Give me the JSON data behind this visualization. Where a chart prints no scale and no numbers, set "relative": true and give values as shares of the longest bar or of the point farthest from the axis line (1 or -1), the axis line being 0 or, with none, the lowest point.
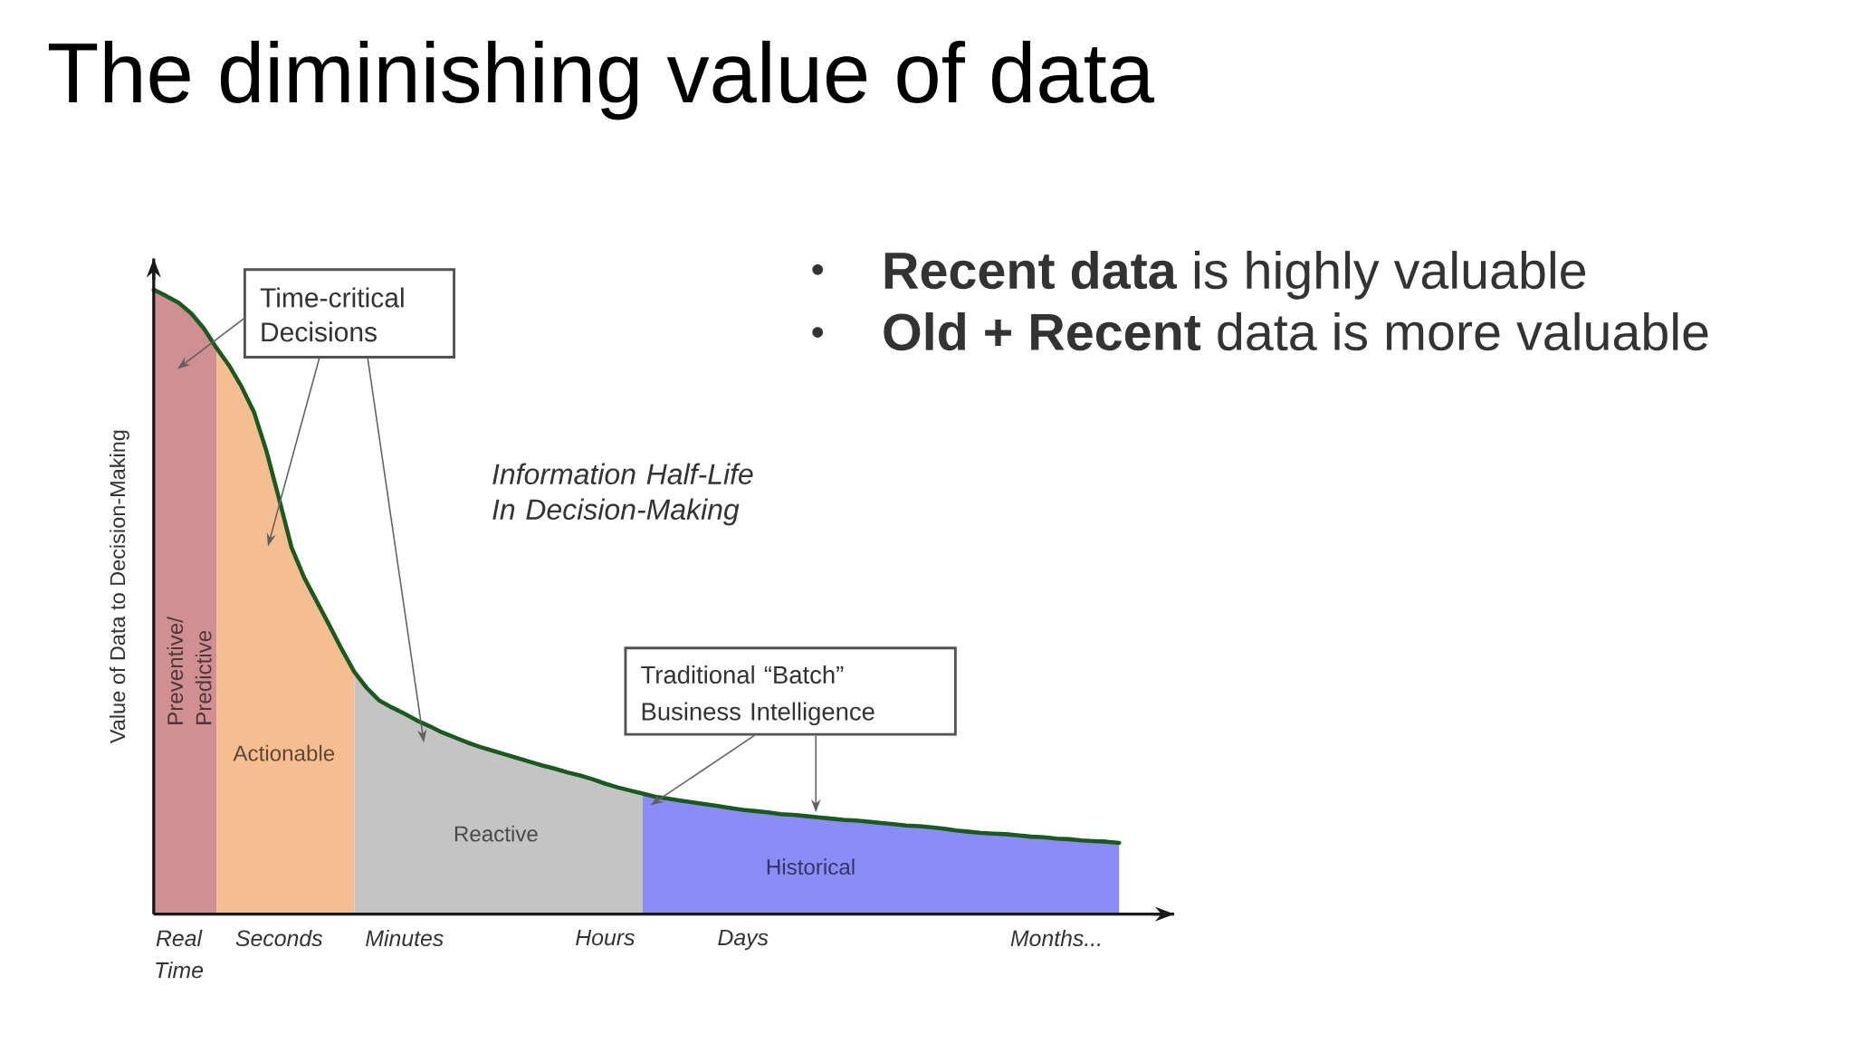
{
  "chart_data": {
    "type": "area",
    "title": "The diminishing value of data",
    "ylabel": "Value of Data to Decision-Making",
    "relative": true,
    "categories": [
      null,
      null,
      "Real Time",
      null,
      null,
      null,
      null,
      null,
      null,
      null,
      "Seconds",
      null,
      null,
      null,
      null,
      null,
      null,
      null,
      null,
      null,
      "Minutes",
      null,
      null,
      null,
      null,
      null,
      null,
      null,
      null,
      null,
      null,
      null,
      null,
      null,
      null,
      null,
      "Hours",
      null,
      null,
      null,
      null,
      null,
      null,
      null,
      null,
      null,
      null,
      "Days",
      null,
      null,
      null,
      null,
      null,
      null,
      null,
      null,
      null,
      null,
      null,
      null,
      null,
      null,
      null,
      null,
      null,
      null,
      null,
      null,
      null,
      null,
      null,
      null,
      "Months...",
      null,
      null,
      null,
      null,
      null
    ],
    "series": [
      {
        "name": "Preventive/ Predictive",
        "color": "#cf8f93",
        "values": [
          1,
          0.99,
          0.979,
          0.962,
          0.938,
          0.907,
          null,
          null,
          null,
          null,
          null,
          null,
          null,
          null,
          null,
          null,
          null,
          null,
          null,
          null,
          null,
          null,
          null,
          null,
          null,
          null,
          null,
          null,
          null,
          null,
          null,
          null,
          null,
          null,
          null,
          null,
          null,
          null,
          null,
          null,
          null,
          null,
          null,
          null,
          null,
          null,
          null,
          null,
          null,
          null,
          null,
          null,
          null,
          null,
          null,
          null,
          null,
          null,
          null,
          null,
          null,
          null,
          null,
          null,
          null,
          null,
          null,
          null,
          null,
          null,
          null,
          null,
          null,
          null,
          null,
          null,
          null,
          null
        ]
      },
      {
        "name": "Actionable",
        "color": "#f4be90",
        "values": [
          null,
          null,
          null,
          null,
          null,
          0.907,
          0.879,
          0.845,
          0.804,
          0.741,
          0.665,
          0.587,
          0.539,
          0.501,
          0.463,
          0.424,
          0.388,
          null,
          null,
          null,
          null,
          null,
          null,
          null,
          null,
          null,
          null,
          null,
          null,
          null,
          null,
          null,
          null,
          null,
          null,
          null,
          null,
          null,
          null,
          null,
          null,
          null,
          null,
          null,
          null,
          null,
          null,
          null,
          null,
          null,
          null,
          null,
          null,
          null,
          null,
          null,
          null,
          null,
          null,
          null,
          null,
          null,
          null,
          null,
          null,
          null,
          null,
          null,
          null,
          null,
          null,
          null,
          null,
          null,
          null,
          null,
          null,
          null
        ]
      },
      {
        "name": "Reactive",
        "color": "#c4c4c4",
        "values": [
          null,
          null,
          null,
          null,
          null,
          null,
          null,
          null,
          null,
          null,
          null,
          null,
          null,
          null,
          null,
          null,
          0.388,
          0.362,
          0.342,
          0.331,
          0.321,
          0.31,
          0.301,
          0.291,
          0.283,
          0.275,
          0.268,
          0.262,
          0.256,
          0.25,
          0.244,
          0.238,
          0.233,
          0.227,
          0.222,
          0.216,
          0.209,
          0.203,
          0.198,
          0.193,
          null,
          null,
          null,
          null,
          null,
          null,
          null,
          null,
          null,
          null,
          null,
          null,
          null,
          null,
          null,
          null,
          null,
          null,
          null,
          null,
          null,
          null,
          null,
          null,
          null,
          null,
          null,
          null,
          null,
          null,
          null,
          null,
          null,
          null,
          null,
          null,
          null,
          null
        ]
      },
      {
        "name": "Historical",
        "color": "#8c8cf8",
        "values": [
          null,
          null,
          null,
          null,
          null,
          null,
          null,
          null,
          null,
          null,
          null,
          null,
          null,
          null,
          null,
          null,
          null,
          null,
          null,
          null,
          null,
          null,
          null,
          null,
          null,
          null,
          null,
          null,
          null,
          null,
          null,
          null,
          null,
          null,
          null,
          null,
          null,
          null,
          null,
          0.193,
          0.188,
          0.185,
          0.182,
          0.179,
          0.176,
          0.173,
          0.17,
          0.167,
          0.165,
          0.163,
          0.16,
          0.159,
          0.157,
          0.155,
          0.153,
          0.151,
          0.15,
          0.148,
          0.146,
          0.144,
          0.142,
          0.141,
          0.139,
          0.137,
          0.134,
          0.132,
          0.13,
          0.129,
          0.128,
          0.126,
          0.124,
          0.123,
          0.121,
          0.12,
          0.118,
          0.117,
          0.116,
          0.114
        ]
      },
      {
        "type": "line",
        "color": "#1a5a1e",
        "values": [
          1,
          0.99,
          0.979,
          0.962,
          0.938,
          0.907,
          0.879,
          0.845,
          0.804,
          0.741,
          0.665,
          0.587,
          0.539,
          0.501,
          0.463,
          0.424,
          0.388,
          0.362,
          0.342,
          0.331,
          0.321,
          0.31,
          0.301,
          0.291,
          0.283,
          0.275,
          0.268,
          0.262,
          0.256,
          0.25,
          0.244,
          0.238,
          0.233,
          0.227,
          0.222,
          0.216,
          0.209,
          0.203,
          0.198,
          0.193,
          0.188,
          0.185,
          0.182,
          0.179,
          0.176,
          0.173,
          0.17,
          0.167,
          0.165,
          0.163,
          0.16,
          0.159,
          0.157,
          0.155,
          0.153,
          0.151,
          0.15,
          0.148,
          0.146,
          0.144,
          0.142,
          0.141,
          0.139,
          0.137,
          0.134,
          0.132,
          0.13,
          0.129,
          0.128,
          0.126,
          0.124,
          0.123,
          0.121,
          0.12,
          0.118,
          0.117,
          0.116,
          0.114
        ]
      }
    ],
    "annotations": [
      "Time-critical Decisions",
      "**Recent data** is highly valuable",
      "**Old + Recent** data is more valuable",
      "Information Half-Life In Decision-Making",
      "Traditional “Batch” Business Intelligence"
    ]
  }
}
